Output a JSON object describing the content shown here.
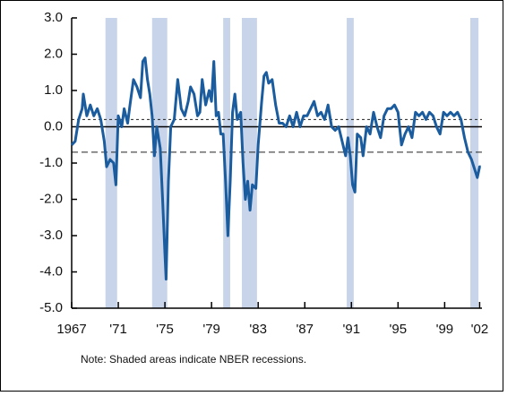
{
  "chart_data": {
    "type": "line",
    "note": "Note: Shaded areas indicate NBER recessions.",
    "recessions": [
      [
        1969.9,
        1970.9
      ],
      [
        1973.9,
        1975.2
      ],
      [
        1980.0,
        1980.6
      ],
      [
        1981.6,
        1982.9
      ],
      [
        1990.6,
        1991.2
      ],
      [
        2001.2,
        2001.9
      ]
    ],
    "reference_lines": [
      0.2,
      -0.7
    ],
    "xlim": [
      1967,
      2002.2
    ],
    "xticks": [
      1967,
      {
        "value": 1971,
        "label": "'71"
      },
      {
        "value": 1975,
        "label": "'75"
      },
      {
        "value": 1979,
        "label": "'79"
      },
      {
        "value": 1983,
        "label": "'83"
      },
      {
        "value": 1987,
        "label": "'87"
      },
      {
        "value": 1991,
        "label": "'91"
      },
      {
        "value": 1995,
        "label": "'95"
      },
      {
        "value": 1999,
        "label": "'99"
      },
      {
        "value": 2002,
        "label": "'02"
      }
    ],
    "ylim": [
      -5,
      3
    ],
    "yticks": [
      {
        "value": -5,
        "label": "-5.0"
      },
      {
        "value": -4,
        "label": "-4.0"
      },
      {
        "value": -3,
        "label": "-3.0"
      },
      {
        "value": -2,
        "label": "-2.0"
      },
      {
        "value": -1,
        "label": "-1.0"
      },
      {
        "value": 0,
        "label": "0.0"
      },
      {
        "value": 1,
        "label": "1.0"
      },
      {
        "value": 2,
        "label": "2.0"
      },
      {
        "value": 3,
        "label": "3.0"
      }
    ],
    "series": [
      {
        "color": "#1a5c9e",
        "x": [
          1967.0,
          1967.3,
          1967.6,
          1967.9,
          1968.0,
          1968.3,
          1968.6,
          1968.9,
          1969.2,
          1969.5,
          1969.8,
          1970.0,
          1970.3,
          1970.6,
          1970.8,
          1971.0,
          1971.3,
          1971.5,
          1971.8,
          1972.0,
          1972.3,
          1972.6,
          1972.9,
          1973.1,
          1973.3,
          1973.5,
          1973.7,
          1973.9,
          1974.1,
          1974.3,
          1974.6,
          1974.8,
          1975.0,
          1975.1,
          1975.3,
          1975.5,
          1975.8,
          1976.1,
          1976.4,
          1976.7,
          1977.0,
          1977.2,
          1977.5,
          1977.8,
          1978.0,
          1978.2,
          1978.5,
          1978.8,
          1979.0,
          1979.2,
          1979.4,
          1979.6,
          1979.8,
          1980.0,
          1980.2,
          1980.4,
          1980.6,
          1980.8,
          1981.0,
          1981.2,
          1981.5,
          1981.7,
          1981.9,
          1982.1,
          1982.3,
          1982.5,
          1982.8,
          1983.0,
          1983.3,
          1983.5,
          1983.7,
          1983.9,
          1984.2,
          1984.5,
          1984.8,
          1985.1,
          1985.4,
          1985.7,
          1986.0,
          1986.3,
          1986.6,
          1986.9,
          1987.2,
          1987.5,
          1987.8,
          1988.1,
          1988.4,
          1988.7,
          1989.0,
          1989.3,
          1989.6,
          1989.9,
          1990.2,
          1990.5,
          1990.7,
          1990.9,
          1991.1,
          1991.3,
          1991.5,
          1991.8,
          1992.0,
          1992.3,
          1992.6,
          1992.9,
          1993.2,
          1993.5,
          1993.8,
          1994.1,
          1994.4,
          1994.7,
          1995.0,
          1995.3,
          1995.6,
          1995.9,
          1996.2,
          1996.5,
          1996.8,
          1997.1,
          1997.4,
          1997.7,
          1998.0,
          1998.3,
          1998.6,
          1998.9,
          1999.2,
          1999.5,
          1999.8,
          2000.1,
          2000.4,
          2000.7,
          2001.0,
          2001.3,
          2001.6,
          2001.8,
          2002.0,
          2002.1
        ],
        "values": [
          -0.5,
          -0.4,
          0.2,
          0.5,
          0.9,
          0.3,
          0.6,
          0.3,
          0.5,
          0.2,
          -0.4,
          -1.1,
          -0.9,
          -1.0,
          -1.6,
          0.3,
          0.0,
          0.5,
          0.1,
          0.6,
          1.3,
          1.1,
          0.8,
          1.8,
          1.9,
          1.3,
          0.9,
          0.3,
          -0.8,
          0.0,
          -0.6,
          -2.0,
          -3.5,
          -4.2,
          -1.5,
          0.0,
          0.2,
          1.3,
          0.5,
          0.3,
          0.7,
          1.1,
          0.9,
          0.3,
          0.4,
          1.3,
          0.6,
          1.0,
          0.7,
          1.8,
          0.3,
          0.4,
          -0.2,
          -0.2,
          -1.5,
          -3.0,
          -1.5,
          0.4,
          0.9,
          0.2,
          0.4,
          -1.0,
          -2.0,
          -1.5,
          -2.3,
          -1.6,
          -1.7,
          -0.5,
          0.7,
          1.4,
          1.5,
          1.2,
          1.3,
          0.6,
          0.1,
          0.1,
          0.0,
          0.3,
          0.0,
          0.4,
          0.0,
          0.3,
          0.3,
          0.5,
          0.7,
          0.3,
          0.4,
          0.2,
          0.6,
          0.0,
          -0.1,
          0.0,
          -0.4,
          -0.8,
          -0.3,
          -0.8,
          -1.6,
          -1.8,
          -0.2,
          -0.3,
          -0.8,
          0.0,
          -0.2,
          0.4,
          0.0,
          -0.3,
          0.3,
          0.5,
          0.5,
          0.6,
          0.4,
          -0.5,
          -0.2,
          0.0,
          -0.3,
          0.4,
          0.3,
          0.4,
          0.2,
          0.4,
          0.3,
          0.0,
          -0.2,
          0.4,
          0.3,
          0.4,
          0.3,
          0.4,
          0.2,
          -0.3,
          -0.7,
          -0.9,
          -1.2,
          -1.4,
          -1.1,
          -1.1
        ]
      }
    ]
  }
}
